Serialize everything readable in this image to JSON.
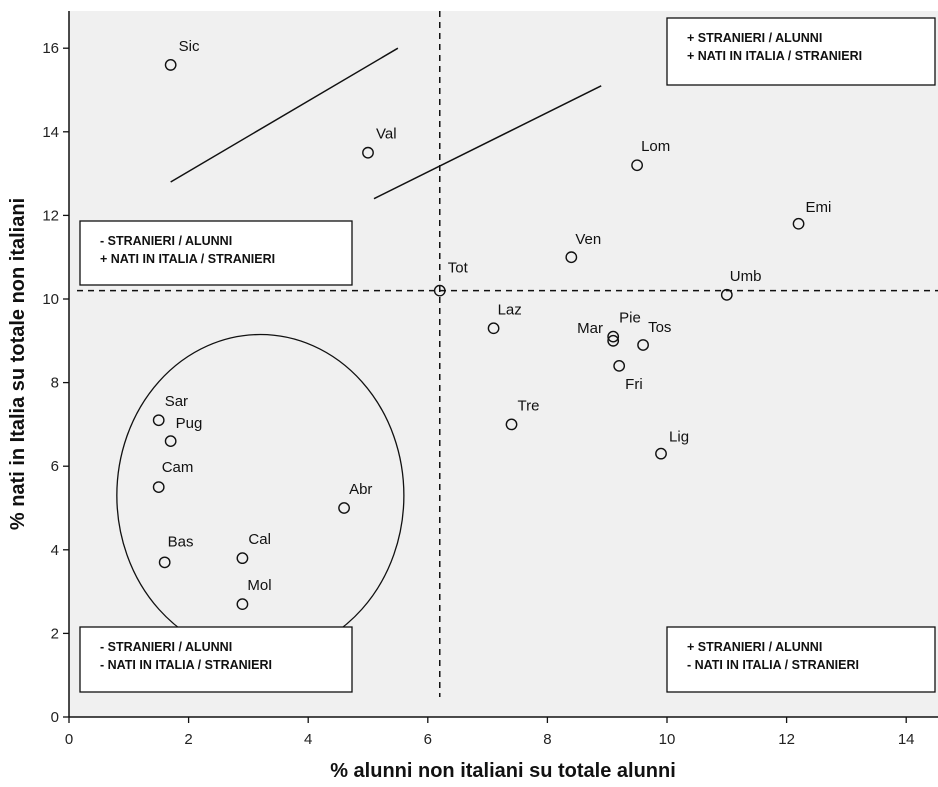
{
  "chart_data": {
    "type": "scatter",
    "xlabel": "% alunni non italiani su totale alunni",
    "ylabel": "% nati in Italia su totale non italiani",
    "xlim": [
      0,
      14.5
    ],
    "ylim": [
      0,
      16.6
    ],
    "xticks": [
      "0",
      "2",
      "4",
      "6",
      "8",
      "10",
      "12",
      "14"
    ],
    "yticks": [
      "0",
      "2",
      "4",
      "6",
      "8",
      "10",
      "12",
      "14",
      "16"
    ],
    "grid": false,
    "reference_lines": {
      "x": 6.2,
      "y": 10.2
    },
    "points": [
      {
        "label": "Sic",
        "x": 1.7,
        "y": 15.6
      },
      {
        "label": "Val",
        "x": 5.0,
        "y": 13.5
      },
      {
        "label": "Lom",
        "x": 9.5,
        "y": 13.2
      },
      {
        "label": "Emi",
        "x": 12.2,
        "y": 11.8
      },
      {
        "label": "Ven",
        "x": 8.4,
        "y": 11.0
      },
      {
        "label": "Tot",
        "x": 6.2,
        "y": 10.2
      },
      {
        "label": "Umb",
        "x": 11.0,
        "y": 10.1
      },
      {
        "label": "Laz",
        "x": 7.1,
        "y": 9.3
      },
      {
        "label": "Mar",
        "x": 9.1,
        "y": 9.0
      },
      {
        "label": "Pie",
        "x": 9.1,
        "y": 9.1
      },
      {
        "label": "Tos",
        "x": 9.6,
        "y": 8.9
      },
      {
        "label": "Fri",
        "x": 9.2,
        "y": 8.4
      },
      {
        "label": "Tre",
        "x": 7.4,
        "y": 7.0
      },
      {
        "label": "Lig",
        "x": 9.9,
        "y": 6.3
      },
      {
        "label": "Sar",
        "x": 1.5,
        "y": 7.1
      },
      {
        "label": "Pug",
        "x": 1.7,
        "y": 6.6
      },
      {
        "label": "Cam",
        "x": 1.5,
        "y": 5.5
      },
      {
        "label": "Abr",
        "x": 4.6,
        "y": 5.0
      },
      {
        "label": "Cal",
        "x": 2.9,
        "y": 3.8
      },
      {
        "label": "Bas",
        "x": 1.6,
        "y": 3.7
      },
      {
        "label": "Mol",
        "x": 2.9,
        "y": 2.7
      }
    ],
    "trend_lines": [
      {
        "from": [
          1.7,
          12.8
        ],
        "to": [
          5.5,
          16.0
        ]
      },
      {
        "from": [
          5.1,
          12.4
        ],
        "to": [
          8.9,
          15.1
        ]
      }
    ],
    "cluster_ellipse": {
      "center": [
        3.2,
        5.3
      ],
      "rx": 2.4,
      "ry": 3.85
    },
    "quadrant_boxes": [
      {
        "id": "top-right",
        "lines": [
          "+ STRANIERI / ALUNNI",
          "+ NATI IN ITALIA / STRANIERI"
        ]
      },
      {
        "id": "top-left",
        "lines": [
          "- STRANIERI / ALUNNI",
          "+ NATI IN ITALIA / STRANIERI"
        ]
      },
      {
        "id": "bottom-left",
        "lines": [
          "- STRANIERI / ALUNNI",
          "- NATI IN ITALIA / STRANIERI"
        ]
      },
      {
        "id": "bottom-right",
        "lines": [
          "+ STRANIERI / ALUNNI",
          "- NATI IN ITALIA / STRANIERI"
        ]
      }
    ]
  }
}
